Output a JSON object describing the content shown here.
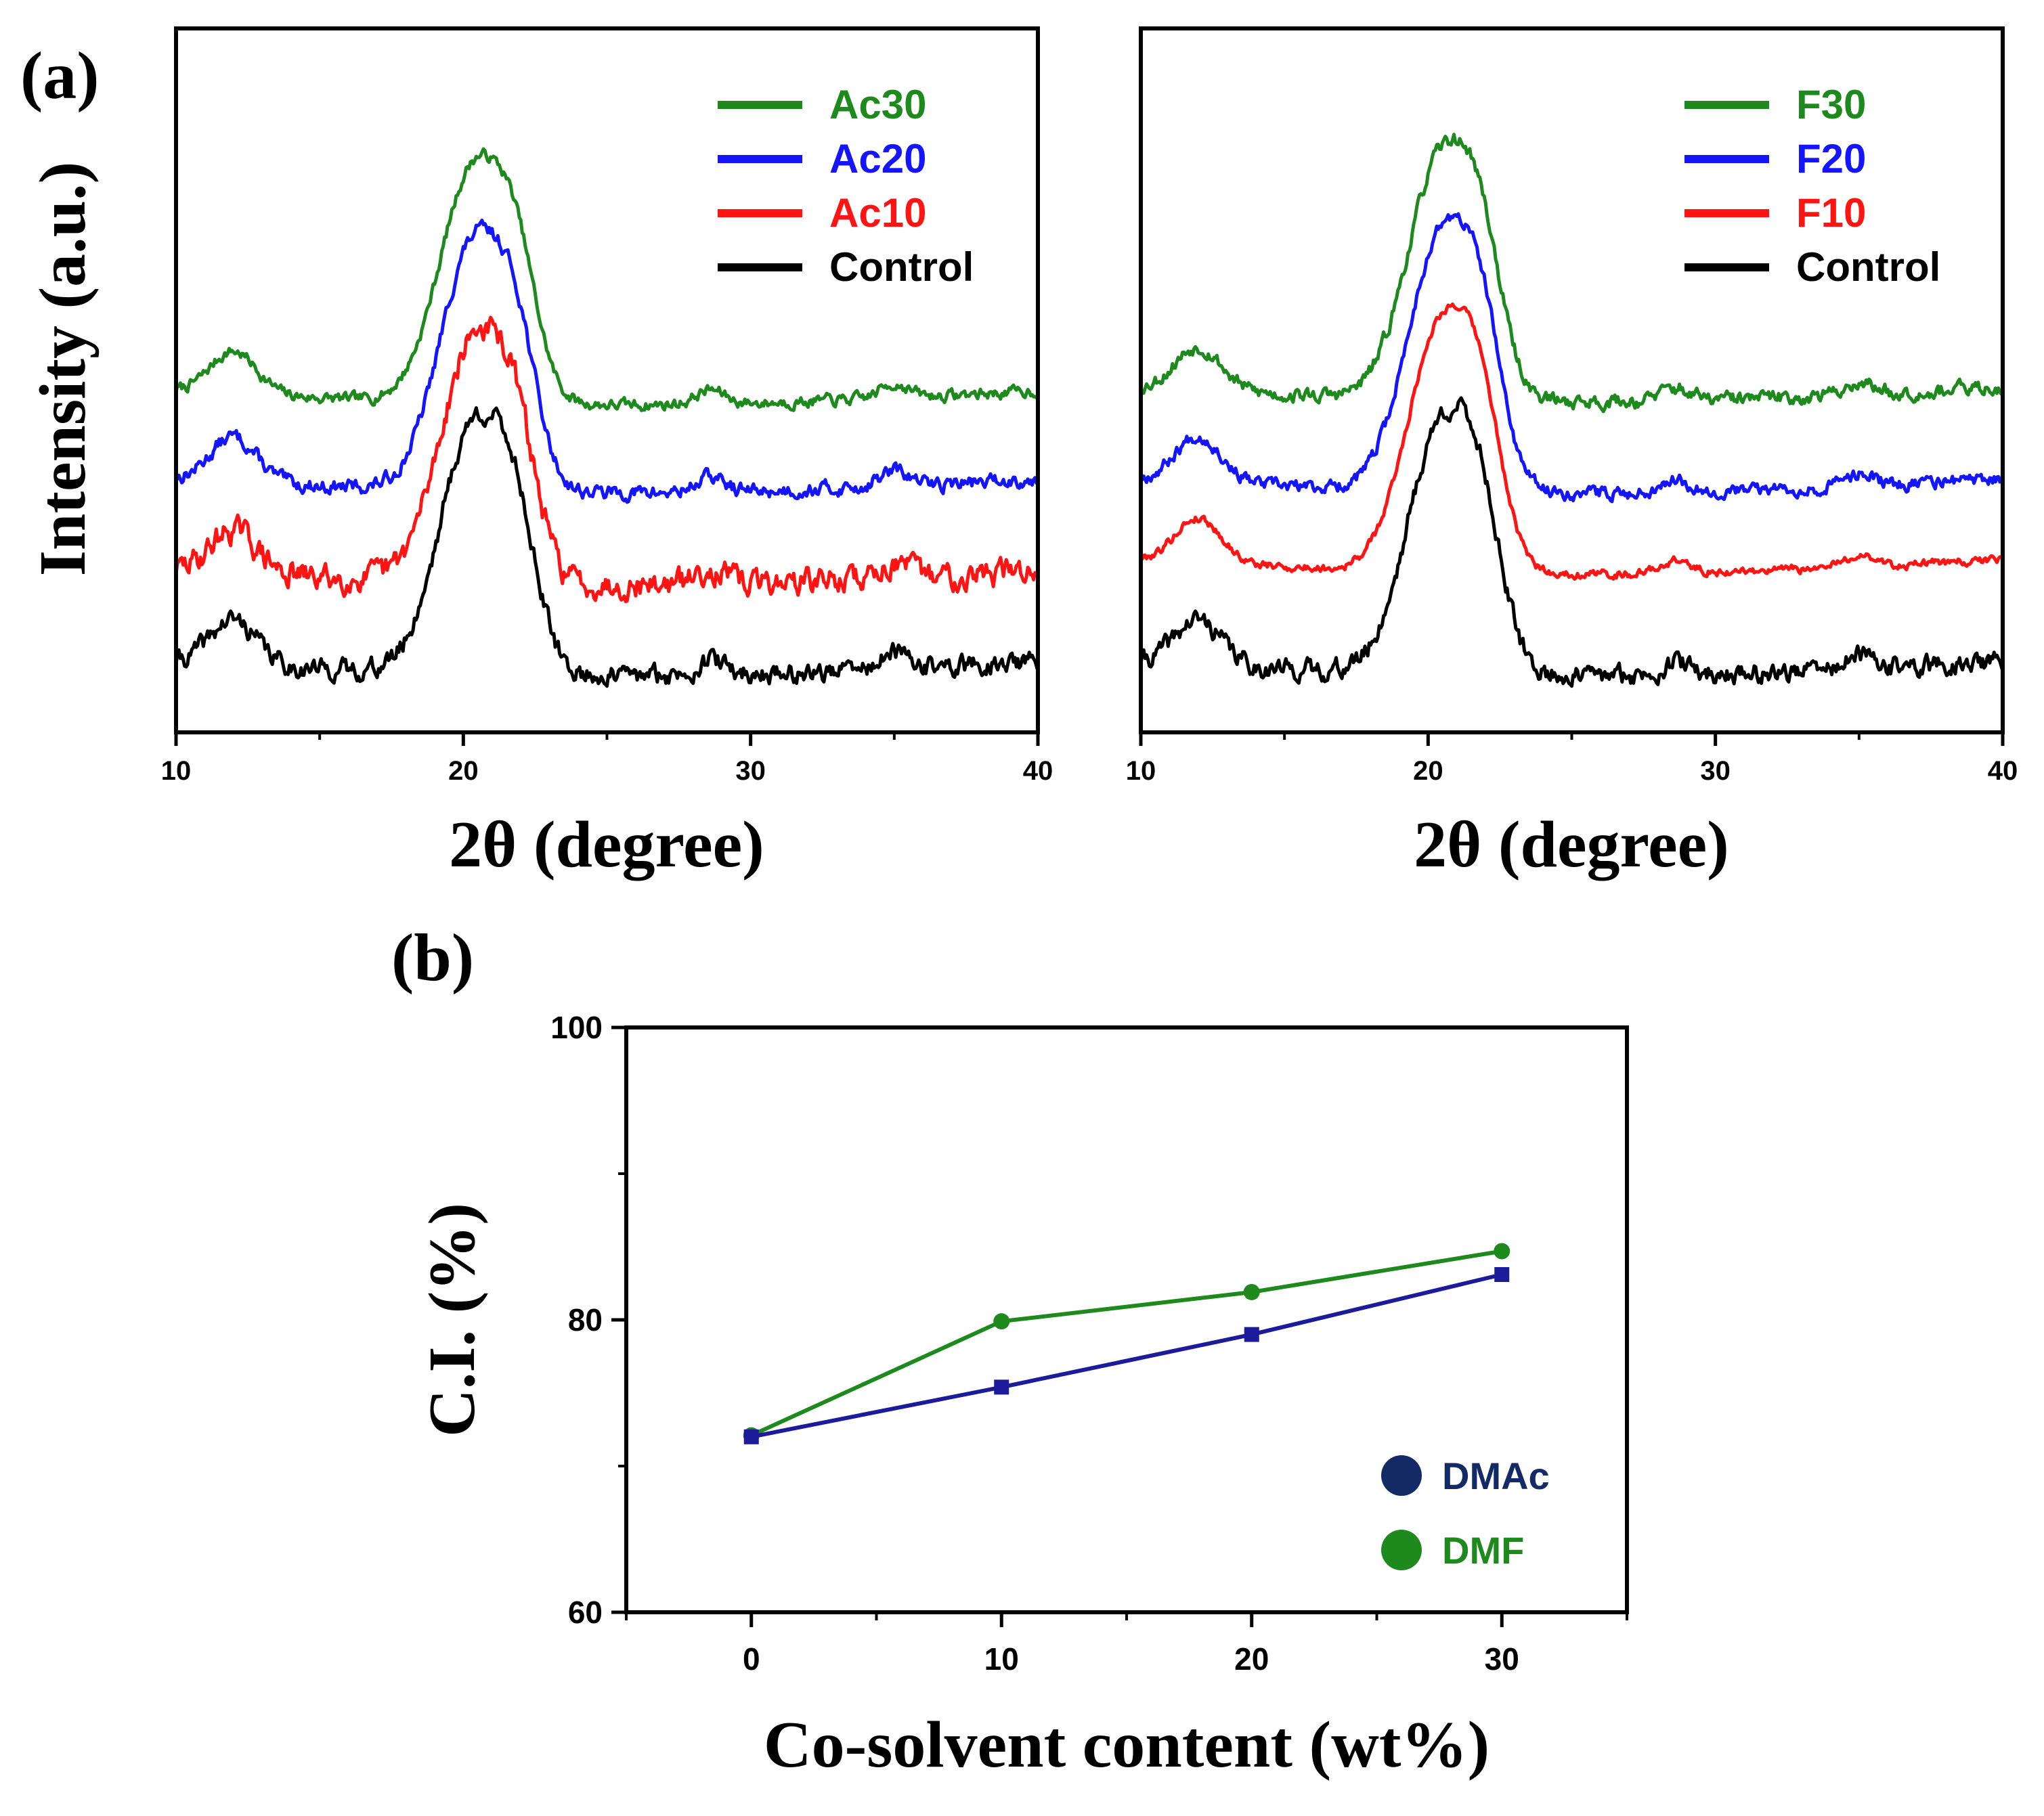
{
  "panel_labels": {
    "a": "(a)",
    "b": "(b)"
  },
  "chart_data": [
    {
      "type": "line",
      "title": "",
      "xlabel": "2θ (degree)",
      "ylabel": "Intensity (a.u.)",
      "xlim": [
        10,
        40
      ],
      "xticks": [
        10,
        20,
        30,
        40
      ],
      "ylim": [
        0,
        1
      ],
      "grid": false,
      "legend_position": "top-right",
      "peaks": [
        {
          "center": 20.4,
          "width": 1.2,
          "amp": 1.0
        },
        {
          "center": 21.9,
          "width": 0.7,
          "amp": 0.35
        },
        {
          "center": 12.0,
          "width": 0.8,
          "amp": 0.18
        },
        {
          "center": 28.6,
          "width": 0.5,
          "amp": 0.06
        },
        {
          "center": 35.0,
          "width": 0.5,
          "amp": 0.06
        }
      ],
      "series": [
        {
          "name": "Ac30",
          "color": "#1e8a1e",
          "baseline": 0.485,
          "peak_height": 0.37,
          "noise": 0.008,
          "seed": 7
        },
        {
          "name": "Ac20",
          "color": "#1414ff",
          "baseline": 0.36,
          "peak_height": 0.39,
          "noise": 0.01,
          "seed": 13
        },
        {
          "name": "Ac10",
          "color": "#ff1414",
          "baseline": 0.23,
          "peak_height": 0.38,
          "noise": 0.018,
          "seed": 29
        },
        {
          "name": "Control",
          "color": "#000000",
          "baseline": 0.1,
          "peak_height": 0.39,
          "noise": 0.014,
          "seed": 41
        }
      ]
    },
    {
      "type": "line",
      "title": "",
      "xlabel": "2θ (degree)",
      "ylabel": "",
      "xlim": [
        10,
        40
      ],
      "xticks": [
        10,
        20,
        30,
        40
      ],
      "ylim": [
        0,
        1
      ],
      "grid": false,
      "legend_position": "top-right",
      "peaks": [
        {
          "center": 20.5,
          "width": 1.2,
          "amp": 1.0
        },
        {
          "center": 21.9,
          "width": 0.7,
          "amp": 0.35
        },
        {
          "center": 12.0,
          "width": 0.8,
          "amp": 0.18
        },
        {
          "center": 28.6,
          "width": 0.5,
          "amp": 0.05
        },
        {
          "center": 35.0,
          "width": 0.5,
          "amp": 0.05
        }
      ],
      "series": [
        {
          "name": "F30",
          "color": "#1e8a1e",
          "baseline": 0.49,
          "peak_height": 0.38,
          "noise": 0.01,
          "seed": 53
        },
        {
          "name": "F20",
          "color": "#1414ff",
          "baseline": 0.36,
          "peak_height": 0.4,
          "noise": 0.009,
          "seed": 67
        },
        {
          "name": "F10",
          "color": "#ff1414",
          "baseline": 0.245,
          "peak_height": 0.39,
          "noise": 0.006,
          "seed": 79
        },
        {
          "name": "Control",
          "color": "#000000",
          "baseline": 0.1,
          "peak_height": 0.39,
          "noise": 0.014,
          "seed": 41
        }
      ]
    },
    {
      "type": "line",
      "title": "",
      "xlabel": "Co-solvent content (wt%)",
      "ylabel": "C.I. (%)",
      "xlim": [
        -5,
        35
      ],
      "ylim": [
        60,
        100
      ],
      "xticks": [
        0,
        10,
        20,
        30
      ],
      "yticks": [
        60,
        80,
        100
      ],
      "grid": false,
      "legend_position": "bottom-right",
      "categories": [
        0,
        10,
        20,
        30
      ],
      "series": [
        {
          "name": "DMAc",
          "color": "#1c1c9a",
          "legend_color": "#142a66",
          "marker": "square",
          "values": [
            72.0,
            75.4,
            79.0,
            83.1
          ]
        },
        {
          "name": "DMF",
          "color": "#1e8a1e",
          "legend_color": "#1e8a1e",
          "marker": "circle",
          "values": [
            72.1,
            79.9,
            81.9,
            84.7
          ]
        }
      ]
    }
  ]
}
